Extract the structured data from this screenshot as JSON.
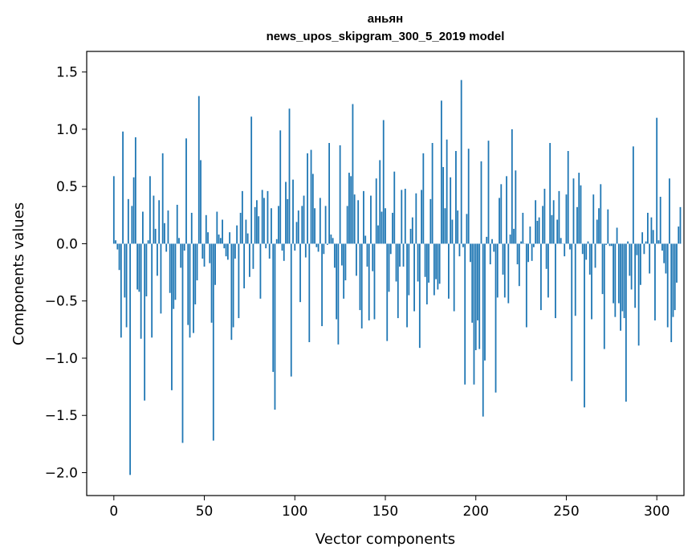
{
  "chart_data": {
    "type": "bar",
    "title": "аньян",
    "subtitle": "news_upos_skipgram_300_5_2019 model",
    "xlabel": "Vector components",
    "ylabel": "Components values",
    "xlim": [
      -15,
      315
    ],
    "ylim": [
      -2.2,
      1.68
    ],
    "xticks": [
      0,
      50,
      100,
      150,
      200,
      250,
      300
    ],
    "yticks": [
      -2.0,
      -1.5,
      -1.0,
      -0.5,
      0.0,
      0.5,
      1.0,
      1.5
    ],
    "xtick_labels": [
      "0",
      "50",
      "100",
      "150",
      "200",
      "250",
      "300"
    ],
    "ytick_labels": [
      "−2.0",
      "−1.5",
      "−1.0",
      "−0.5",
      "0.0",
      "0.5",
      "1.0",
      "1.5"
    ],
    "bar_color": "#1f77b4",
    "values": [
      0.59,
      0.03,
      -0.05,
      -0.23,
      -0.82,
      0.98,
      -0.47,
      -0.73,
      0.39,
      -2.02,
      0.33,
      0.58,
      0.93,
      -0.4,
      -0.42,
      -0.83,
      0.28,
      -1.37,
      -0.46,
      0.03,
      0.59,
      -0.82,
      0.42,
      0.13,
      -0.28,
      0.38,
      -0.61,
      0.79,
      0.18,
      -0.07,
      0.29,
      -0.43,
      -1.28,
      -0.57,
      -0.49,
      0.34,
      0.05,
      -0.21,
      -1.74,
      -0.06,
      0.92,
      -0.71,
      -0.82,
      0.27,
      -0.78,
      -0.53,
      -0.32,
      1.29,
      0.73,
      -0.13,
      -0.2,
      0.25,
      0.1,
      -0.17,
      -0.69,
      -1.72,
      -0.36,
      0.28,
      0.08,
      0.05,
      0.21,
      -0.04,
      -0.11,
      -0.14,
      0.1,
      -0.84,
      -0.73,
      -0.13,
      0.16,
      -0.65,
      0.27,
      0.46,
      -0.39,
      0.21,
      0.09,
      -0.29,
      1.11,
      -0.22,
      0.32,
      0.38,
      0.24,
      -0.48,
      0.47,
      0.4,
      -0.04,
      0.46,
      -0.13,
      0.31,
      -1.12,
      -1.45,
      0.04,
      0.33,
      0.99,
      -0.06,
      -0.15,
      0.54,
      0.39,
      1.18,
      -1.16,
      0.56,
      -0.06,
      0.19,
      0.29,
      -0.51,
      0.33,
      0.42,
      -0.12,
      0.79,
      -0.86,
      0.82,
      0.61,
      0.31,
      -0.03,
      -0.07,
      0.4,
      -0.72,
      -0.09,
      0.33,
      -0.01,
      0.88,
      0.08,
      0.05,
      -0.21,
      -0.66,
      -0.88,
      0.86,
      -0.19,
      -0.48,
      -0.32,
      0.33,
      0.62,
      0.59,
      1.22,
      0.43,
      -0.28,
      0.38,
      -0.58,
      -0.74,
      0.46,
      0.07,
      -0.2,
      -0.67,
      0.42,
      -0.24,
      -0.66,
      0.57,
      0.16,
      0.73,
      0.28,
      1.08,
      0.31,
      -0.85,
      -0.42,
      -0.09,
      0.27,
      0.63,
      -0.33,
      -0.65,
      -0.2,
      0.47,
      -0.2,
      0.48,
      -0.73,
      -0.45,
      0.13,
      0.23,
      -0.59,
      0.44,
      -0.33,
      -0.91,
      0.47,
      0.79,
      -0.29,
      -0.53,
      -0.34,
      0.39,
      0.88,
      -0.45,
      -0.31,
      -0.4,
      -0.35,
      1.25,
      0.67,
      0.31,
      0.91,
      -0.48,
      0.58,
      0.21,
      -0.59,
      0.81,
      0.29,
      -0.11,
      1.43,
      -0.03,
      -1.23,
      0.26,
      0.83,
      -0.16,
      -0.69,
      -1.23,
      -0.93,
      -0.67,
      -0.92,
      0.72,
      -1.51,
      -1.02,
      0.06,
      0.9,
      -0.18,
      0.04,
      -0.07,
      -1.3,
      -0.47,
      0.4,
      0.52,
      -0.27,
      -0.47,
      0.59,
      -0.52,
      0.08,
      1.0,
      0.13,
      0.64,
      -0.18,
      -0.37,
      0.02,
      0.27,
      0.0,
      -0.73,
      -0.16,
      0.15,
      -0.15,
      -0.03,
      0.38,
      0.2,
      0.23,
      -0.58,
      0.33,
      0.48,
      -0.22,
      -0.47,
      0.88,
      0.25,
      0.38,
      -0.65,
      0.21,
      0.46,
      0.05,
      0.0,
      -0.11,
      0.43,
      0.81,
      -0.05,
      -1.2,
      0.57,
      -0.63,
      0.32,
      0.62,
      0.51,
      -0.09,
      -1.43,
      -0.14,
      0.02,
      -0.27,
      -0.66,
      0.43,
      -0.21,
      0.21,
      0.31,
      0.52,
      -0.44,
      -0.92,
      -0.01,
      0.3,
      -0.02,
      -0.02,
      -0.52,
      -0.64,
      0.14,
      -0.52,
      -0.76,
      -0.59,
      -0.65,
      -1.38,
      0.02,
      -0.28,
      -0.4,
      0.85,
      -0.56,
      -0.1,
      -0.89,
      -0.36,
      0.1,
      -0.09,
      0.02,
      0.27,
      -0.26,
      0.23,
      0.12,
      -0.67,
      1.1,
      0.03,
      0.41,
      -0.06,
      -0.17,
      -0.26,
      -0.73,
      0.57,
      -0.86,
      -0.64,
      -0.58,
      -0.34,
      0.15,
      0.32
    ]
  }
}
